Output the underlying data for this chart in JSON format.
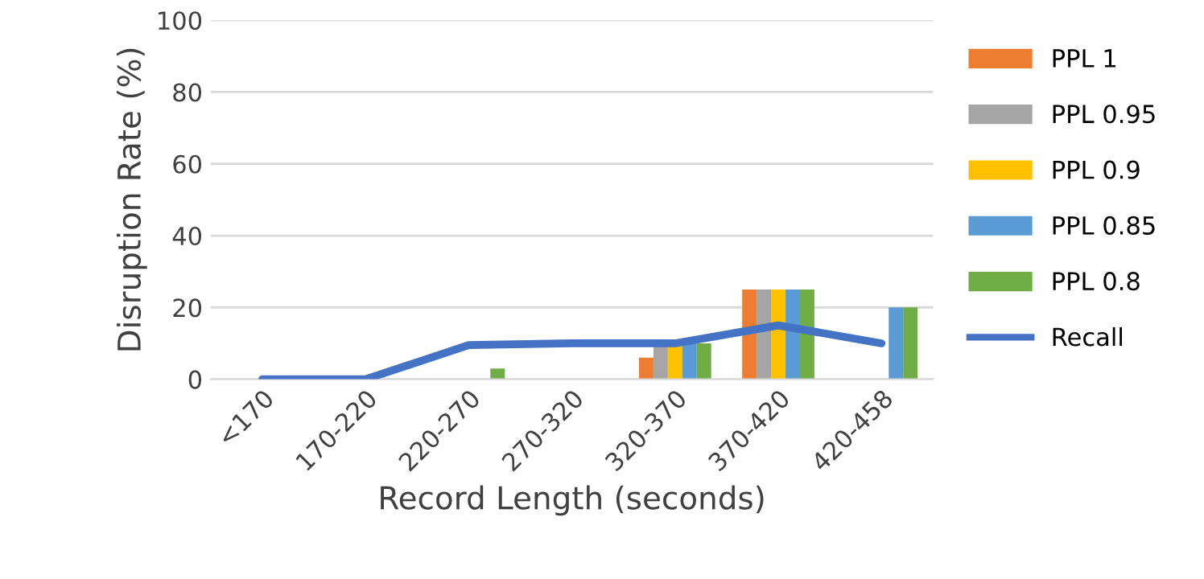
{
  "chart_data": {
    "type": "bar",
    "xlabel": "Record Length (seconds)",
    "ylabel": "Disruption Rate (%)",
    "categories": [
      "<170",
      "170-220",
      "220-270",
      "270-320",
      "320-370",
      "370-420",
      "420-458"
    ],
    "series": [
      {
        "name": "PPL 1",
        "color": "#ed7d31",
        "values": [
          0,
          0,
          0,
          0,
          6,
          25,
          0
        ]
      },
      {
        "name": "PPL 0.95",
        "color": "#a5a5a5",
        "values": [
          0,
          0,
          0,
          0,
          10,
          25,
          0
        ]
      },
      {
        "name": "PPL 0.9",
        "color": "#ffc000",
        "values": [
          0,
          0,
          0,
          0,
          10,
          25,
          0
        ]
      },
      {
        "name": "PPL 0.85",
        "color": "#5b9bd5",
        "values": [
          0,
          0,
          0,
          0,
          10,
          25,
          20
        ]
      },
      {
        "name": "PPL 0.8",
        "color": "#70ad47",
        "values": [
          0,
          0,
          3,
          0,
          10,
          25,
          20
        ]
      },
      {
        "name": "Recall",
        "type": "line",
        "color": "#4472c4",
        "values": [
          0,
          0,
          9.5,
          10,
          10,
          15,
          10
        ]
      }
    ],
    "ylim": [
      0,
      100
    ],
    "yticks": [
      0,
      20,
      40,
      60,
      80,
      100
    ],
    "grid": "y",
    "legend": "right"
  }
}
